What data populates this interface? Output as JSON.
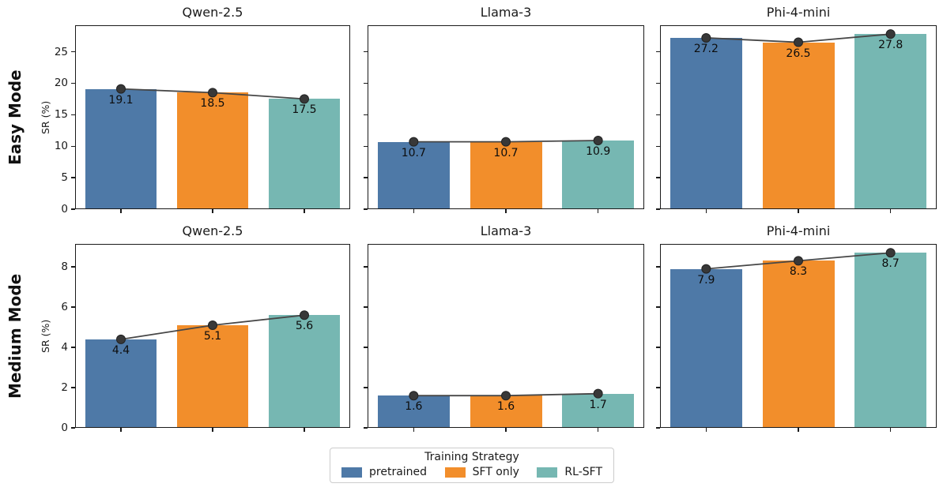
{
  "chart_data": {
    "type": "bar",
    "description": "2x3 grid of bar charts with a dark line-and-marker overlay showing the same values; rows are difficulty modes, columns are models",
    "categories": [
      "pretrained",
      "SFT only",
      "RL-SFT"
    ],
    "palette": [
      "#4e79a7",
      "#f28e2b",
      "#76b7b2"
    ],
    "line_color": "#474747",
    "marker_color": "#383838",
    "spine_color": "#1a1a1a",
    "grid": false,
    "rows": [
      {
        "label": "Easy Mode",
        "ylabel": "SR (%)",
        "ylim": [
          0,
          29.2
        ],
        "yticks": [
          0,
          5,
          10,
          15,
          20,
          25
        ],
        "panels": [
          {
            "title": "Qwen-2.5",
            "values": [
              19.1,
              18.5,
              17.5
            ],
            "value_labels": [
              "19.1",
              "18.5",
              "17.5"
            ]
          },
          {
            "title": "Llama-3",
            "values": [
              10.7,
              10.7,
              10.9
            ],
            "value_labels": [
              "10.7",
              "10.7",
              "10.9"
            ]
          },
          {
            "title": "Phi-4-mini",
            "values": [
              27.2,
              26.5,
              27.8
            ],
            "value_labels": [
              "27.2",
              "26.5",
              "27.8"
            ]
          }
        ]
      },
      {
        "label": "Medium Mode",
        "ylabel": "SR (%)",
        "ylim": [
          0,
          9.14
        ],
        "yticks": [
          0,
          2,
          4,
          6,
          8
        ],
        "panels": [
          {
            "title": "Qwen-2.5",
            "values": [
              4.4,
              5.1,
              5.6
            ],
            "value_labels": [
              "4.4",
              "5.1",
              "5.6"
            ]
          },
          {
            "title": "Llama-3",
            "values": [
              1.6,
              1.6,
              1.7
            ],
            "value_labels": [
              "1.6",
              "1.6",
              "1.7"
            ]
          },
          {
            "title": "Phi-4-mini",
            "values": [
              7.9,
              8.3,
              8.7
            ],
            "value_labels": [
              "7.9",
              "8.3",
              "8.7"
            ]
          }
        ]
      }
    ],
    "legend": {
      "title": "Training Strategy",
      "position": "bottom-center",
      "entries": [
        {
          "label": "pretrained",
          "color": "#4e79a7"
        },
        {
          "label": "SFT only",
          "color": "#f28e2b"
        },
        {
          "label": "RL-SFT",
          "color": "#76b7b2"
        }
      ]
    }
  }
}
